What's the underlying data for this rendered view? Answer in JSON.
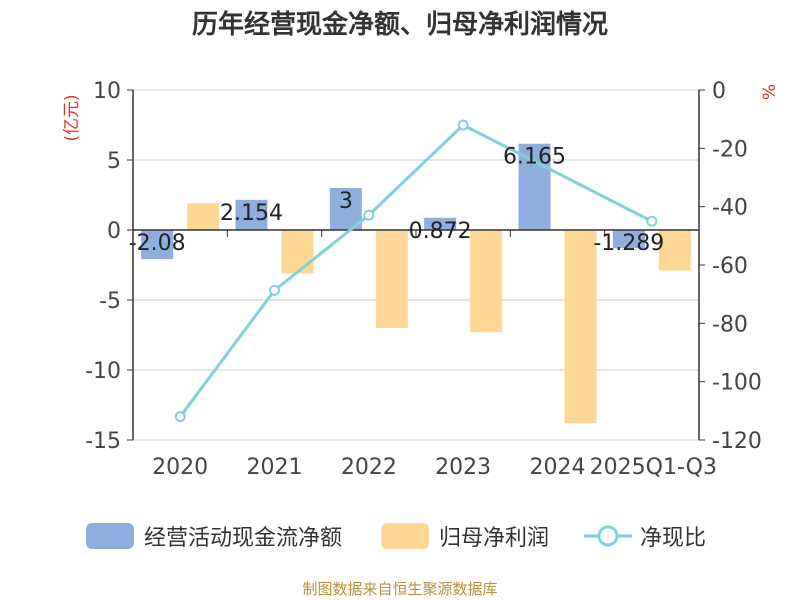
{
  "title": "历年经营现金净额、归母净利润情况",
  "source_note": "制图数据来自恒生聚源数据库",
  "chart_data": {
    "type": "bar",
    "title": "历年经营现金净额、归母净利润情况",
    "categories": [
      "2020",
      "2021",
      "2022",
      "2023",
      "2024",
      "2025Q1-Q3"
    ],
    "y_left": {
      "label": "(亿元)",
      "range": [
        -15,
        10
      ],
      "ticks": [
        "10",
        "5",
        "0",
        "-5",
        "-10",
        "-15"
      ]
    },
    "y_right": {
      "label": "%",
      "range": [
        -120,
        0
      ],
      "ticks": [
        "0",
        "-20",
        "-40",
        "-60",
        "-80",
        "-100",
        "-120"
      ]
    },
    "series": [
      {
        "name": "经营活动现金流净额",
        "type": "bar",
        "axis": "left",
        "color": "#8eaedd",
        "values": [
          -2.08,
          2.154,
          3,
          0.872,
          6.165,
          -1.289
        ],
        "labels": [
          "-2.08",
          "2.154",
          "3",
          "0.872",
          "6.165",
          "-1.289"
        ]
      },
      {
        "name": "归母净利润",
        "type": "bar",
        "axis": "left",
        "color": "#fed794",
        "values": [
          1.9,
          -3.1,
          -7.0,
          -7.3,
          -13.8,
          -2.9
        ]
      },
      {
        "name": "净现比",
        "type": "line",
        "axis": "right",
        "color": "#7fd1d8",
        "values": [
          -112.0,
          -68.7,
          -42.9,
          -12.0,
          null,
          -45.0
        ]
      }
    ],
    "legend_position": "bottom",
    "grid": true
  }
}
